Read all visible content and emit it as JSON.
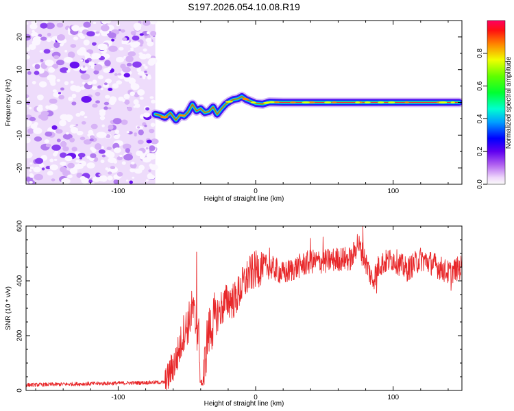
{
  "title": "S197.2026.054.10.08.R19",
  "chart_data": [
    {
      "type": "heatmap",
      "name": "spectrogram",
      "title": "S197.2026.054.10.08.R19",
      "xlabel": "Height of straight line (km)",
      "ylabel": "Frequency (Hz)",
      "xlim": [
        -167,
        150
      ],
      "ylim": [
        -25,
        25
      ],
      "x_ticks": [
        -100,
        0,
        100
      ],
      "x_tick_labels": [
        "-100",
        "0",
        "100"
      ],
      "y_ticks": [
        -20,
        -10,
        0,
        10,
        20
      ],
      "y_tick_labels": [
        "-20",
        "-10",
        "0",
        "10",
        "20"
      ],
      "noise_region_x": [
        -167,
        -73
      ],
      "signal_track": {
        "x": [
          -73,
          -70,
          -66,
          -62,
          -58,
          -55,
          -52,
          -49,
          -46,
          -43,
          -40,
          -37,
          -34,
          -31,
          -28,
          -25,
          -22,
          -19,
          -16,
          -13,
          -10,
          -7,
          -4,
          0,
          5,
          10,
          20,
          40,
          60,
          80,
          100,
          120,
          148
        ],
        "freq": [
          -3.6,
          -3.9,
          -4.6,
          -3.2,
          -5.4,
          -3.8,
          -4.2,
          -2.9,
          -0.6,
          -2.6,
          -1.9,
          -3.1,
          -2.8,
          -1.4,
          -3.6,
          -2.0,
          -0.6,
          0.3,
          0.9,
          1.1,
          1.8,
          0.9,
          0.4,
          -0.3,
          -0.5,
          0.1,
          0.0,
          0.0,
          0.0,
          0.0,
          0.0,
          0.0,
          0.0
        ]
      },
      "colorbar": {
        "label": "Normalized spectral amplitude",
        "range": [
          0,
          1
        ],
        "ticks": [
          0.0,
          0.2,
          0.4,
          0.6,
          0.8
        ],
        "tick_labels": [
          "0.0",
          "0.2",
          "0.4",
          "0.6",
          "0.8"
        ]
      }
    },
    {
      "type": "line",
      "name": "snr",
      "xlabel": "Height of straight line (km)",
      "ylabel": "SNR (10 * v/v)",
      "xlim": [
        -167,
        150
      ],
      "ylim": [
        0,
        600
      ],
      "x_ticks": [
        -100,
        0,
        100
      ],
      "x_tick_labels": [
        "-100",
        "0",
        "100"
      ],
      "y_ticks": [
        0,
        200,
        400,
        600
      ],
      "y_tick_labels": [
        "0",
        "200",
        "400",
        "600"
      ],
      "series": [
        {
          "name": "SNR",
          "color": "#e8282a",
          "anchor_x": [
            -167,
            -65,
            -62,
            -58,
            -55,
            -52,
            -49,
            -46,
            -44,
            -42,
            -40,
            -38,
            -35,
            -30,
            -25,
            -20,
            -15,
            -10,
            -5,
            0,
            5,
            10,
            15,
            20,
            30,
            40,
            50,
            60,
            70,
            74,
            80,
            85,
            90,
            100,
            110,
            120,
            130,
            140,
            150
          ],
          "anchor_y": [
            20,
            30,
            70,
            110,
            160,
            220,
            240,
            300,
            250,
            210,
            140,
            40,
            200,
            260,
            300,
            330,
            330,
            380,
            420,
            440,
            455,
            450,
            440,
            425,
            450,
            470,
            470,
            480,
            480,
            540,
            470,
            400,
            460,
            480,
            440,
            480,
            460,
            430,
            450
          ],
          "spikes": [
            {
              "x": -43,
              "y": 505
            },
            {
              "x": -40,
              "y": 30
            },
            {
              "x": 10,
              "y": 520
            },
            {
              "x": 40,
              "y": 555
            },
            {
              "x": 49,
              "y": 560
            },
            {
              "x": 78,
              "y": 600
            },
            {
              "x": 88,
              "y": 355
            },
            {
              "x": 142,
              "y": 365
            },
            {
              "x": 150,
              "y": 480
            }
          ]
        }
      ]
    }
  ]
}
